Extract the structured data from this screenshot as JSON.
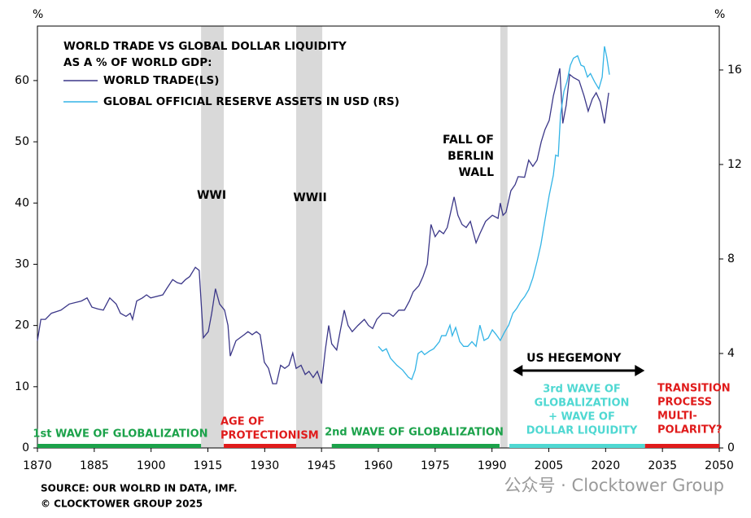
{
  "chart_data": {
    "type": "line",
    "title": [
      "WORLD TRADE VS GLOBAL DOLLAR LIQUIDITY",
      "AS A % OF WORLD GDP:"
    ],
    "y_unit": "%",
    "y2_unit": "%",
    "xlim": [
      1870,
      2050
    ],
    "xticks": [
      1870,
      1885,
      1900,
      1915,
      1930,
      1945,
      1960,
      1975,
      1990,
      2005,
      2020,
      2035,
      2050
    ],
    "ylim": [
      0,
      68.9
    ],
    "yticks": [
      0,
      10,
      20,
      30,
      40,
      50,
      60
    ],
    "y2lim": [
      0,
      17.86
    ],
    "y2ticks": [
      0,
      4,
      8,
      12,
      16
    ],
    "legend": "upper left",
    "series": [
      {
        "name": "WORLD TRADE(LS)",
        "color": "#3b3788",
        "x": [
          1870,
          1870.9,
          1872.1,
          1873.7,
          1876.2,
          1878.4,
          1881.6,
          1883.1,
          1884.4,
          1885.9,
          1887.4,
          1889.1,
          1890.8,
          1891.9,
          1893.4,
          1894.5,
          1895.1,
          1896.2,
          1897.7,
          1898.8,
          1899.9,
          1903.1,
          1904.1,
          1905.7,
          1906.9,
          1908,
          1909.1,
          1910.2,
          1911.7,
          1912.7,
          1913.8,
          1915.1,
          1916,
          1917,
          1918.1,
          1919.4,
          1920.3,
          1920.9,
          1922.4,
          1924.6,
          1925.6,
          1926.7,
          1927.8,
          1928.8,
          1929.9,
          1931,
          1932.1,
          1933.1,
          1934.2,
          1935.3,
          1936.4,
          1937.4,
          1938.3,
          1939.6,
          1940.7,
          1941.7,
          1942.8,
          1943.9,
          1945,
          1946,
          1946.9,
          1947.7,
          1949,
          1949.9,
          1951,
          1952,
          1953.1,
          1954.6,
          1956.3,
          1957.4,
          1958.5,
          1959.6,
          1961.1,
          1962.8,
          1963.9,
          1965.4,
          1966.9,
          1968.2,
          1969.2,
          1970.7,
          1971.8,
          1972.9,
          1973.9,
          1975,
          1976.1,
          1977.2,
          1978.2,
          1980,
          1981,
          1982.1,
          1983.2,
          1984.3,
          1985.8,
          1986.8,
          1988.3,
          1990.1,
          1991.6,
          1992.2,
          1992.9,
          1993.7,
          1995,
          1996.1,
          1996.9,
          1998.6,
          1999.7,
          2000.8,
          2001.9,
          2003,
          2004,
          2005.1,
          2006.2,
          2007.2,
          2007.9,
          2008.7,
          2009.6,
          2010.5,
          2011.5,
          2013,
          2014.3,
          2015.4,
          2016.5,
          2017.5,
          2018.6,
          2019.7,
          2020.8
        ],
        "values": [
          17.5,
          21,
          21,
          22,
          22.5,
          23.5,
          24,
          24.5,
          23,
          22.7,
          22.5,
          24.5,
          23.5,
          22,
          21.5,
          22,
          21,
          24,
          24.5,
          25,
          24.5,
          25,
          26,
          27.5,
          27,
          26.8,
          27.5,
          28,
          29.5,
          29,
          18,
          19,
          22,
          26,
          23.5,
          22.5,
          20,
          15,
          17.5,
          18.5,
          19,
          18.5,
          19,
          18.5,
          14,
          13,
          10.5,
          10.5,
          13.5,
          13,
          13.5,
          15.5,
          13,
          13.5,
          12,
          12.5,
          11.5,
          12.5,
          10.5,
          16,
          20,
          17,
          16,
          19,
          22.5,
          20,
          19,
          20,
          21,
          20,
          19.5,
          21,
          22,
          22,
          21.5,
          22.5,
          22.5,
          24,
          25.5,
          26.5,
          28,
          30,
          36.5,
          34.5,
          35.5,
          35,
          36,
          41,
          38,
          36.5,
          36,
          37,
          33.5,
          35,
          37,
          38,
          37.5,
          40,
          38,
          38.5,
          42,
          43,
          44.3,
          44.2,
          47,
          46,
          47,
          50,
          52,
          53.5,
          57.5,
          60,
          62,
          53,
          56,
          61,
          60.5,
          60,
          57.5,
          55,
          57,
          58,
          56.5,
          53,
          58
        ]
      },
      {
        "name": "GLOBAL OFFICIAL RESERVE ASSETS IN USD (RS)",
        "color": "#33b4e6",
        "axis": "y2",
        "x": [
          1960,
          1961.1,
          1962.1,
          1963.2,
          1964.9,
          1966.4,
          1967.9,
          1968.8,
          1969.7,
          1970.5,
          1971.4,
          1972.2,
          1973.5,
          1974.6,
          1976.1,
          1976.7,
          1977.8,
          1978.9,
          1979.5,
          1980.4,
          1981.5,
          1982.5,
          1983.6,
          1984.7,
          1985.8,
          1986.8,
          1987.9,
          1989,
          1990.1,
          1991.1,
          1992.2,
          1993.3,
          1994.4,
          1995.5,
          1996.5,
          1997.6,
          1998.6,
          1999.7,
          2000.8,
          2001.9,
          2002.9,
          2004,
          2005.1,
          2006.2,
          2006.8,
          2007.5,
          2008.1,
          2009,
          2009.8,
          2010.7,
          2011.5,
          2012.6,
          2013.5,
          2014.3,
          2015.2,
          2016,
          2017.1,
          2018.2,
          2019.1,
          2019.7,
          2020.3,
          2021
        ],
        "values": [
          4.3,
          4.1,
          4.2,
          3.8,
          3.5,
          3.3,
          3.0,
          2.9,
          3.3,
          4.0,
          4.1,
          3.95,
          4.1,
          4.2,
          4.5,
          4.75,
          4.75,
          5.2,
          4.75,
          5.1,
          4.5,
          4.3,
          4.3,
          4.5,
          4.3,
          5.2,
          4.55,
          4.65,
          5.0,
          4.8,
          4.55,
          4.9,
          5.2,
          5.7,
          5.9,
          6.2,
          6.4,
          6.7,
          7.2,
          7.9,
          8.6,
          9.65,
          10.7,
          11.55,
          12.4,
          12.35,
          14.1,
          15.1,
          15.5,
          16.2,
          16.5,
          16.6,
          16.2,
          16.15,
          15.7,
          15.85,
          15.5,
          15.2,
          15.7,
          17.0,
          16.55,
          15.8
        ]
      }
    ],
    "shaded_periods": [
      {
        "label": [
          "WWI"
        ],
        "start": 1913.2,
        "end": 1919.2
      },
      {
        "label": [
          "WWII"
        ],
        "start": 1938.3,
        "end": 1945.2
      },
      {
        "label": [
          "FALL OF",
          "BERLIN",
          "WALL"
        ],
        "start": 1992.2,
        "end": 1994.1
      }
    ],
    "eras": [
      {
        "label": [
          "1st WAVE OF GLOBALIZATION"
        ],
        "start": 1870,
        "end": 1913.2,
        "color": "#1ba24a"
      },
      {
        "label": [
          "AGE OF",
          "PROTECTIONISM"
        ],
        "start": 1919.2,
        "end": 1938.3,
        "color": "#e01b1b"
      },
      {
        "label": [
          "2nd WAVE OF GLOBALIZATION"
        ],
        "start": 1947.7,
        "end": 1992,
        "color": "#1ba24a"
      },
      {
        "label": [
          "3rd WAVE OF",
          "GLOBALIZATION",
          "+ WAVE OF",
          "DOLLAR LIQUIDITY"
        ],
        "start": 1994.6,
        "end": 2030.4,
        "color": "#4fd8d2"
      },
      {
        "label": [
          "TRANSITION",
          "PROCESS",
          "MULTI-",
          "POLARITY?"
        ],
        "start": 2030.4,
        "end": 2050,
        "color": "#e01b1b"
      }
    ],
    "span_annotation": {
      "label": "US HEGEMONY",
      "start": 1995.5,
      "end": 2030.3
    },
    "source": "SOURCE: OUR WOLRD IN DATA, IMF.",
    "copyright": "© CLOCKTOWER GROUP 2025",
    "watermark": "公众号 · Clocktower Group"
  }
}
